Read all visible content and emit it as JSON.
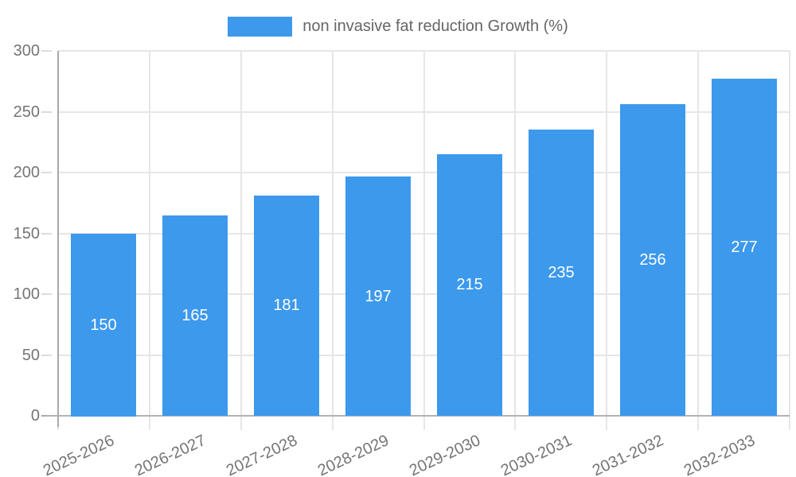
{
  "chart_data": {
    "type": "bar",
    "title": "",
    "series_name": "non invasive fat reduction Growth (%)",
    "categories": [
      "2025-2026",
      "2026-2027",
      "2027-2028",
      "2028-2029",
      "2029-2030",
      "2030-2031",
      "2031-2032",
      "2032-2033"
    ],
    "values": [
      150,
      165,
      181,
      197,
      215,
      235,
      256,
      277
    ],
    "xlabel": "",
    "ylabel": "",
    "ylim": [
      0,
      300
    ],
    "yticks": [
      0,
      50,
      100,
      150,
      200,
      250,
      300
    ],
    "grid": true,
    "legend_position": "top",
    "bar_color": "#3c99ec",
    "value_label_color": "#ffffff",
    "axis_text_color": "#757575",
    "legend_text_color": "#666666",
    "grid_color": "#e6e6e6",
    "axis_line_color": "#a8a8a8",
    "background_color": "#ffffff"
  }
}
